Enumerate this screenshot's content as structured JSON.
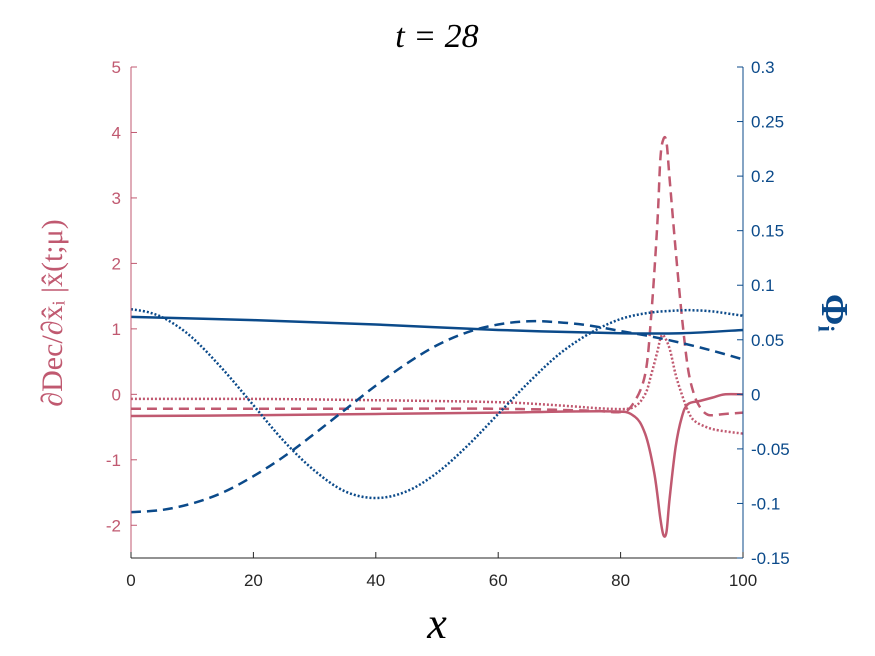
{
  "chart_data": {
    "type": "line",
    "title": "t = 28",
    "xlabel": "x",
    "ylabel_left": "∂Dec/∂x̂ᵢ |x̂(t;μ)",
    "ylabel_right": "Φᵢ",
    "xlim": [
      0,
      100
    ],
    "ylim_left": [
      -2.5,
      5
    ],
    "ylim_right": [
      -0.15,
      0.3
    ],
    "x_ticks": [
      0,
      20,
      40,
      60,
      80,
      100
    ],
    "y_left_ticks": [
      -2,
      -1,
      0,
      1,
      2,
      3,
      4,
      5
    ],
    "y_left_tick_labels": [
      "-2",
      "-1",
      "0",
      "1",
      "2",
      "3",
      "4",
      "5"
    ],
    "y_right_ticks": [
      -0.15,
      -0.1,
      -0.05,
      0,
      0.05,
      0.1,
      0.15,
      0.2,
      0.25,
      0.3
    ],
    "y_right_tick_labels": [
      "-0.15",
      "-0.1",
      "-0.05",
      "0",
      "0.05",
      "0.1",
      "0.15",
      "0.2",
      "0.25",
      "0.3"
    ],
    "grid": false,
    "colors": {
      "left": "#c05970",
      "right": "#0b4a8a",
      "axis_left": "#c05970",
      "axis_right": "#0b4a8a",
      "axis_bottom": "#262626"
    },
    "series": [
      {
        "axis": "left",
        "style": "solid",
        "x": [
          0,
          20,
          40,
          60,
          78,
          82,
          84,
          85.5,
          86.5,
          87,
          87.5,
          88,
          89,
          90,
          91,
          93,
          95,
          97,
          100
        ],
        "y": [
          -0.33,
          -0.32,
          -0.3,
          -0.28,
          -0.26,
          -0.32,
          -0.6,
          -1.2,
          -1.9,
          -2.15,
          -2.1,
          -1.6,
          -0.8,
          -0.35,
          -0.15,
          -0.1,
          -0.05,
          0.0,
          0.0
        ]
      },
      {
        "axis": "left",
        "style": "dashed",
        "x": [
          0,
          20,
          40,
          60,
          75,
          80,
          82,
          84,
          85,
          86,
          86.5,
          87,
          87.5,
          88,
          89,
          90,
          91,
          92,
          93,
          94,
          95,
          97,
          100
        ],
        "y": [
          -0.22,
          -0.22,
          -0.22,
          -0.22,
          -0.25,
          -0.27,
          -0.15,
          0.3,
          1.2,
          2.6,
          3.6,
          3.9,
          3.85,
          3.3,
          2.2,
          1.2,
          0.4,
          0.0,
          -0.2,
          -0.3,
          -0.32,
          -0.3,
          -0.28
        ]
      },
      {
        "axis": "left",
        "style": "dotted",
        "x": [
          0,
          20,
          40,
          60,
          70,
          78,
          82,
          84,
          85,
          86,
          86.5,
          87,
          88,
          89,
          90,
          91,
          92,
          94,
          96,
          100
        ],
        "y": [
          -0.07,
          -0.07,
          -0.09,
          -0.12,
          -0.17,
          -0.22,
          -0.2,
          0.0,
          0.3,
          0.65,
          0.85,
          0.9,
          0.7,
          0.3,
          0.0,
          -0.25,
          -0.4,
          -0.5,
          -0.55,
          -0.6
        ]
      },
      {
        "axis": "right",
        "style": "solid",
        "x": [
          0,
          20,
          40,
          60,
          80,
          90,
          100
        ],
        "y": [
          0.071,
          0.068,
          0.064,
          0.059,
          0.056,
          0.056,
          0.059
        ]
      },
      {
        "axis": "right",
        "style": "dashed",
        "x": [
          0,
          5,
          10,
          15,
          20,
          25,
          30,
          35,
          40,
          45,
          50,
          55,
          60,
          65,
          70,
          75,
          80,
          85,
          90,
          95,
          100
        ],
        "y": [
          -0.108,
          -0.106,
          -0.1,
          -0.09,
          -0.075,
          -0.057,
          -0.036,
          -0.014,
          0.008,
          0.028,
          0.045,
          0.057,
          0.064,
          0.067,
          0.066,
          0.063,
          0.058,
          0.053,
          0.047,
          0.04,
          0.032
        ]
      },
      {
        "axis": "right",
        "style": "dotted",
        "x": [
          0,
          3,
          6,
          10,
          15,
          20,
          25,
          30,
          35,
          40,
          45,
          50,
          55,
          60,
          65,
          70,
          75,
          80,
          85,
          90,
          92,
          95,
          100
        ],
        "y": [
          0.078,
          0.075,
          0.068,
          0.052,
          0.023,
          -0.01,
          -0.043,
          -0.07,
          -0.089,
          -0.095,
          -0.089,
          -0.072,
          -0.047,
          -0.018,
          0.011,
          0.037,
          0.056,
          0.069,
          0.075,
          0.077,
          0.077,
          0.076,
          0.072
        ]
      }
    ]
  }
}
